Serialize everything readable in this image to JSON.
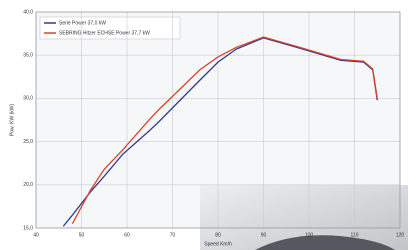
{
  "chart_data": {
    "type": "line",
    "y_label": "Pow. KW (kW)",
    "x_label": "Speed Km/h",
    "x": [
      46,
      48,
      52,
      55,
      59,
      65,
      67,
      76,
      80,
      84,
      90,
      98,
      107,
      112,
      114,
      115
    ],
    "series": [
      {
        "name": "Serie Power 37,0 kW",
        "color": "#2b3f8c",
        "values": [
          15.2,
          16.5,
          19.2,
          21,
          23.5,
          26.3,
          27.3,
          32.1,
          34.2,
          35.7,
          37,
          35.8,
          34.4,
          34.2,
          33.3,
          29.8
        ]
      },
      {
        "name": "SEBRING Hitzer ECHSE Power 37,7 kW",
        "color": "#e0402a",
        "values": [
          null,
          15.5,
          19.4,
          21.8,
          24,
          27.6,
          28.7,
          33.3,
          34.8,
          35.9,
          37.1,
          35.9,
          34.5,
          34.3,
          33.4,
          30
        ]
      }
    ],
    "xlim": [
      40,
      120
    ],
    "xticks": [
      40,
      50,
      60,
      70,
      80,
      90,
      100,
      110,
      120
    ],
    "ylim": [
      15,
      40
    ],
    "yticks": [
      {
        "value": 15,
        "label": "15,0"
      },
      {
        "value": 20,
        "label": "20,0"
      },
      {
        "value": 25,
        "label": "25,0"
      },
      {
        "value": 30,
        "label": "30,0"
      },
      {
        "value": 35,
        "label": "35,0"
      },
      {
        "value": 40,
        "label": "40,0"
      }
    ],
    "grid": true
  }
}
